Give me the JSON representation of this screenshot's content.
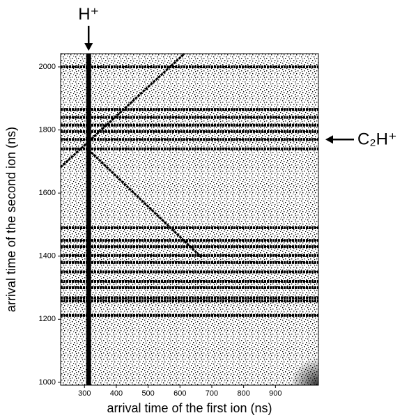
{
  "chart_data": {
    "type": "scatter",
    "x_label": "arrival time of the first ion (ns)",
    "y_label": "arrival time of the second ion (ns)",
    "xlim": [
      225,
      1035
    ],
    "ylim": [
      991,
      2042
    ],
    "xticks": [
      300,
      400,
      500,
      600,
      700,
      800,
      900
    ],
    "yticks": [
      1000,
      1200,
      1400,
      1600,
      1800,
      2000
    ],
    "color": "#000000",
    "horizontal_lines": [
      2000,
      1865,
      1840,
      1815,
      1795,
      1770,
      1740,
      1490,
      1450,
      1430,
      1402,
      1380,
      1350,
      1320,
      1300,
      1268,
      1258,
      1212
    ],
    "vertical_lines": [
      313
    ],
    "diagonals": [
      {
        "x": [
          225,
          614
        ],
        "y": [
          1682,
          2042
        ]
      },
      {
        "x": [
          313,
          669
        ],
        "y": [
          1737,
          1395
        ]
      }
    ],
    "annotations": [
      {
        "text": "H⁺",
        "x": 313
      },
      {
        "text": "C₂H⁺",
        "y": 1770
      }
    ]
  }
}
